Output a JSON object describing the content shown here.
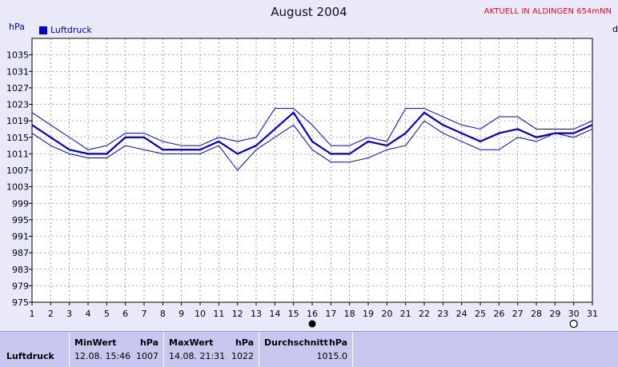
{
  "chart_data": {
    "type": "line",
    "title": "August 2004",
    "ylabel": "hPa",
    "xlabel": "",
    "ylim": [
      975,
      1039
    ],
    "yticks": [
      975,
      979,
      983,
      987,
      991,
      995,
      999,
      1003,
      1007,
      1011,
      1015,
      1019,
      1023,
      1027,
      1031,
      1035
    ],
    "x": [
      1,
      2,
      3,
      4,
      5,
      6,
      7,
      8,
      9,
      10,
      11,
      12,
      13,
      14,
      15,
      16,
      17,
      18,
      19,
      20,
      21,
      22,
      23,
      24,
      25,
      26,
      27,
      28,
      29,
      30,
      31
    ],
    "grid": true,
    "legend_position": "top-left",
    "series": [
      {
        "name": "Luftdruck",
        "role": "mean",
        "color": "#0000cc",
        "values": [
          1018,
          1015,
          1012,
          1011,
          1011,
          1015,
          1015,
          1012,
          1012,
          1012,
          1014,
          1011,
          1013,
          1017,
          1021,
          1014,
          1011,
          1011,
          1014,
          1013,
          1016,
          1021,
          1018,
          1016,
          1014,
          1016,
          1017,
          1015,
          1016,
          1016,
          1018
        ]
      },
      {
        "role": "max",
        "color": "#0000cc",
        "values": [
          1021,
          1018,
          1015,
          1012,
          1013,
          1016,
          1016,
          1014,
          1013,
          1013,
          1015,
          1014,
          1015,
          1022,
          1022,
          1018,
          1013,
          1013,
          1015,
          1014,
          1022,
          1022,
          1020,
          1018,
          1017,
          1020,
          1020,
          1017,
          1017,
          1017,
          1019
        ]
      },
      {
        "role": "min",
        "color": "#0000cc",
        "values": [
          1016,
          1013,
          1011,
          1010,
          1010,
          1013,
          1012,
          1011,
          1011,
          1011,
          1013,
          1007,
          1012,
          1015,
          1018,
          1012,
          1009,
          1009,
          1010,
          1012,
          1013,
          1019,
          1016,
          1014,
          1012,
          1012,
          1015,
          1014,
          1016,
          1015,
          1017
        ]
      }
    ],
    "markers": [
      {
        "x": 16,
        "symbol": "filled-circle"
      },
      {
        "x": 30,
        "symbol": "open-circle"
      }
    ]
  },
  "header": {
    "right_label": "AKTUELL IN ALDINGEN 654mNN",
    "cut_label": "d"
  },
  "footer": {
    "row_label": "Luftdruck",
    "min_header": "MinWert",
    "min_unit": "hPa",
    "min_time": "12.08.  15:46",
    "min_value": "1007",
    "max_header": "MaxWert",
    "max_unit": "hPa",
    "max_time": "14.08.  21:31",
    "max_value": "1022",
    "avg_header": "Durchschnitt",
    "avg_unit": "hPa",
    "avg_value": "1015.0"
  }
}
